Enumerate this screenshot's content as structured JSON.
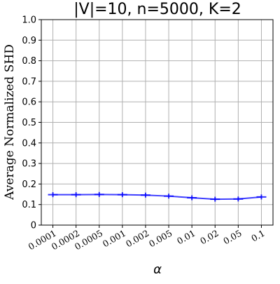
{
  "chart_data": {
    "type": "line",
    "title": "|V|=10, n=5000, K=2",
    "xlabel": "α",
    "ylabel": "Average Normalized SHD",
    "categories": [
      "0.0001",
      "0.0002",
      "0.0005",
      "0.001",
      "0.002",
      "0.005",
      "0.01",
      "0.02",
      "0.05",
      "0.1"
    ],
    "series": [
      {
        "values": [
          0.148,
          0.148,
          0.149,
          0.148,
          0.146,
          0.141,
          0.133,
          0.126,
          0.127,
          0.137
        ],
        "errors": [
          0.012,
          0.012,
          0.012,
          0.012,
          0.012,
          0.012,
          0.012,
          0.012,
          0.012,
          0.012
        ],
        "color": "#0000ff"
      }
    ],
    "ylim": [
      0,
      1.0
    ],
    "yticks": [
      "0",
      "0.1",
      "0.2",
      "0.3",
      "0.4",
      "0.5",
      "0.6",
      "0.7",
      "0.8",
      "0.9",
      "1.0"
    ],
    "grid": true
  }
}
